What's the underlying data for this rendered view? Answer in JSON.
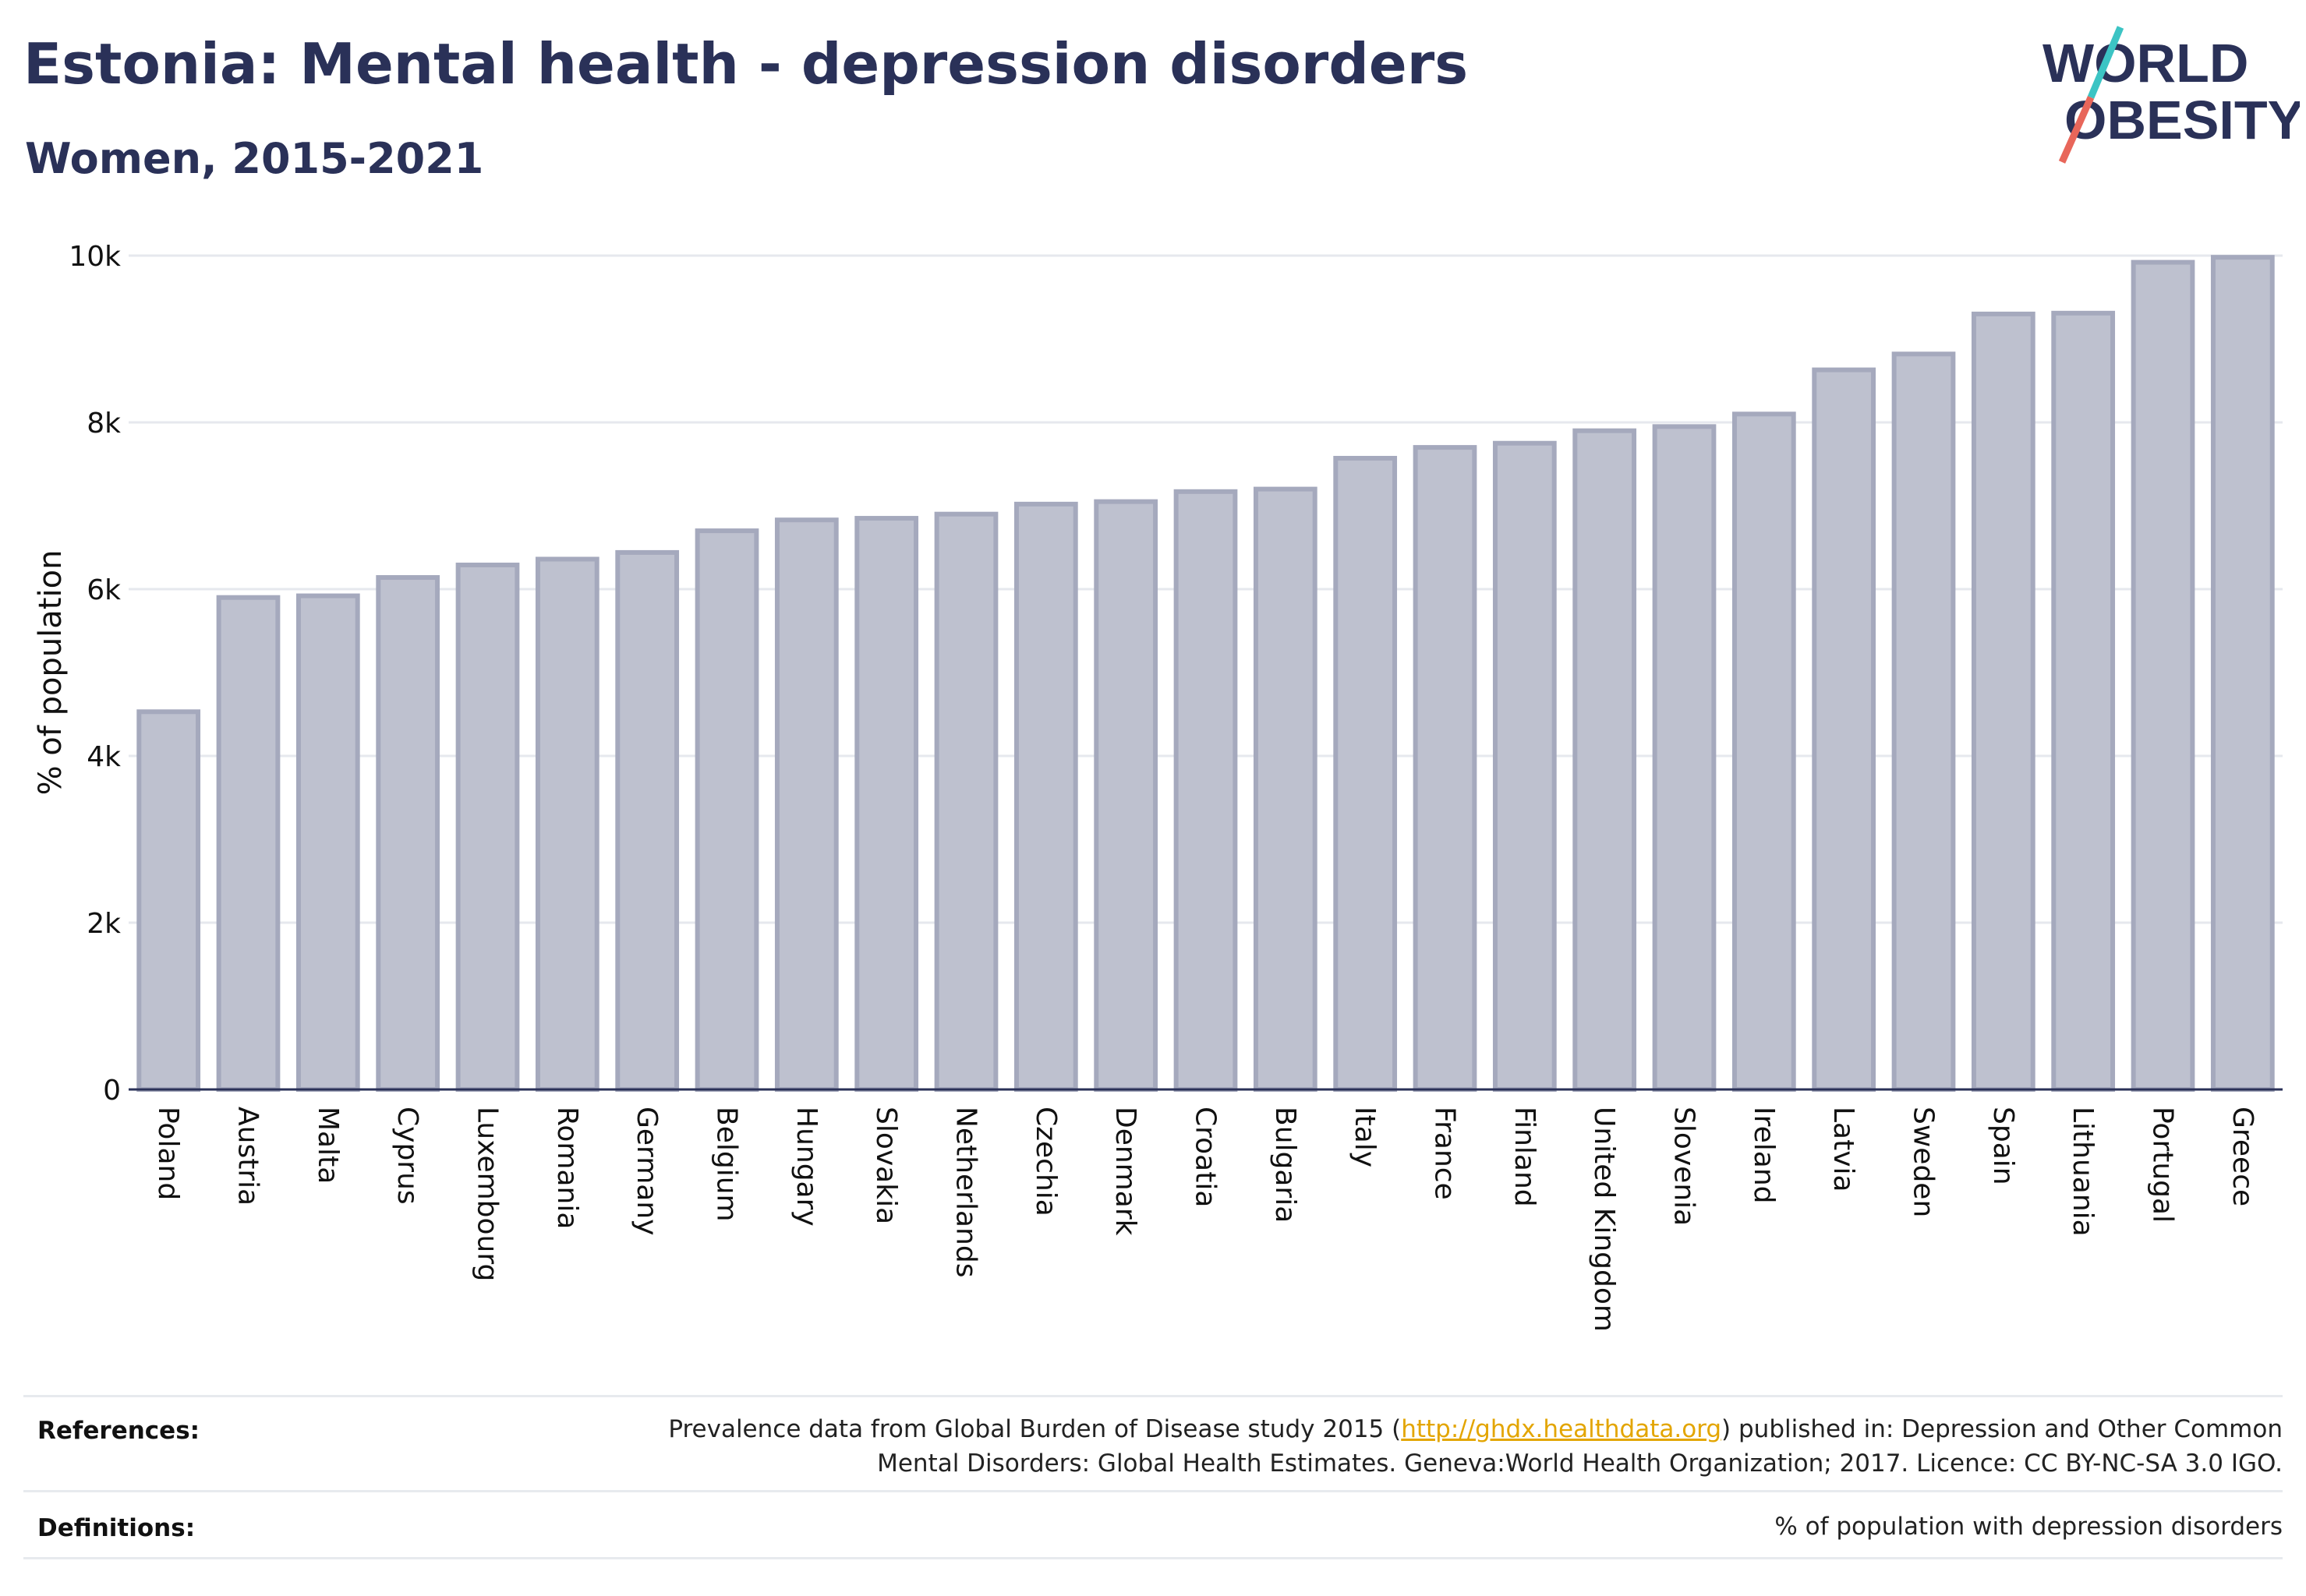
{
  "header": {
    "title": "Estonia: Mental health - depression disorders",
    "subtitle": "Women, 2015-2021",
    "logo_top": "WORLD",
    "logo_bottom": "OBESITY"
  },
  "colors": {
    "title": "#2a3158",
    "bar_fill": "#bec1cf",
    "bar_stroke": "#a5a9bd",
    "grid": "#e6e8ee",
    "logo_text": "#2a3158",
    "logo_slash_teal": "#3cc4c4",
    "logo_slash_red": "#e8665a",
    "link": "#e3a500"
  },
  "chart_data": {
    "type": "bar",
    "title": "Estonia: Mental health - depression disorders",
    "subtitle": "Women, 2015-2021",
    "xlabel": "",
    "ylabel": "% of population",
    "ylim": [
      0,
      10000
    ],
    "yticks": [
      0,
      2000,
      4000,
      6000,
      8000,
      10000
    ],
    "ytick_labels": [
      "0",
      "2k",
      "4k",
      "6k",
      "8k",
      "10k"
    ],
    "grid": true,
    "categories": [
      "Poland",
      "Austria",
      "Malta",
      "Cyprus",
      "Luxembourg",
      "Romania",
      "Germany",
      "Belgium",
      "Hungary",
      "Slovakia",
      "Netherlands",
      "Czechia",
      "Denmark",
      "Croatia",
      "Bulgaria",
      "Italy",
      "France",
      "Finland",
      "United Kingdom",
      "Slovenia",
      "Ireland",
      "Latvia",
      "Sweden",
      "Spain",
      "Lithuania",
      "Portugal",
      "Greece"
    ],
    "values": [
      4530,
      5900,
      5920,
      6140,
      6290,
      6360,
      6440,
      6700,
      6830,
      6850,
      6900,
      7020,
      7050,
      7170,
      7200,
      7570,
      7700,
      7750,
      7900,
      7950,
      8100,
      8630,
      8820,
      9300,
      9310,
      9920,
      9980
    ]
  },
  "footer": {
    "references_label": "References:",
    "references_line1_pre": "Prevalence data from Global Burden of Disease study 2015 (",
    "references_link": "http://ghdx.healthdata.org",
    "references_line1_post": ") published in: Depression and Other Common",
    "references_line2": "Mental Disorders: Global Health Estimates. Geneva:World Health Organization; 2017. Licence: CC BY-NC-SA 3.0 IGO.",
    "definitions_label": "Definitions:",
    "definitions_text": "% of population with depression disorders"
  }
}
